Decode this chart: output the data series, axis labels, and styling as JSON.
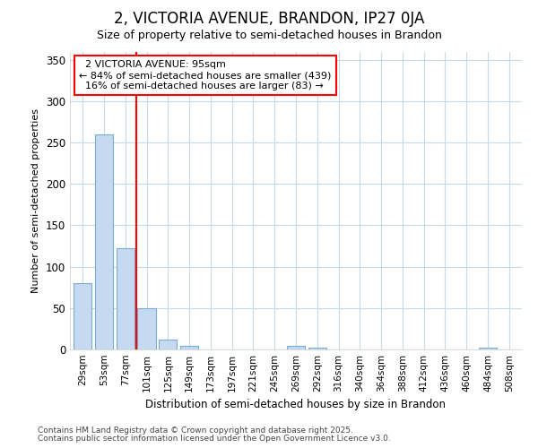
{
  "title": "2, VICTORIA AVENUE, BRANDON, IP27 0JA",
  "subtitle": "Size of property relative to semi-detached houses in Brandon",
  "xlabel": "Distribution of semi-detached houses by size in Brandon",
  "ylabel": "Number of semi-detached properties",
  "categories": [
    "29sqm",
    "53sqm",
    "77sqm",
    "101sqm",
    "125sqm",
    "149sqm",
    "173sqm",
    "197sqm",
    "221sqm",
    "245sqm",
    "269sqm",
    "292sqm",
    "316sqm",
    "340sqm",
    "364sqm",
    "388sqm",
    "412sqm",
    "436sqm",
    "460sqm",
    "484sqm",
    "508sqm"
  ],
  "values": [
    80,
    260,
    122,
    50,
    12,
    4,
    0,
    0,
    0,
    0,
    4,
    2,
    0,
    0,
    0,
    0,
    0,
    0,
    0,
    2,
    0
  ],
  "bar_color": "#c5d9f0",
  "bar_edge_color": "#7aadd4",
  "property_label": "2 VICTORIA AVENUE: 95sqm",
  "pct_smaller": 84,
  "n_smaller": 439,
  "pct_larger": 16,
  "n_larger": 83,
  "vline_x_index": 3.0,
  "ylim": [
    0,
    360
  ],
  "yticks": [
    0,
    50,
    100,
    150,
    200,
    250,
    300,
    350
  ],
  "footnote1": "Contains HM Land Registry data © Crown copyright and database right 2025.",
  "footnote2": "Contains public sector information licensed under the Open Government Licence v3.0.",
  "bg_color": "#ffffff",
  "plot_bg_color": "#ffffff",
  "grid_color": "#c8d8ec"
}
